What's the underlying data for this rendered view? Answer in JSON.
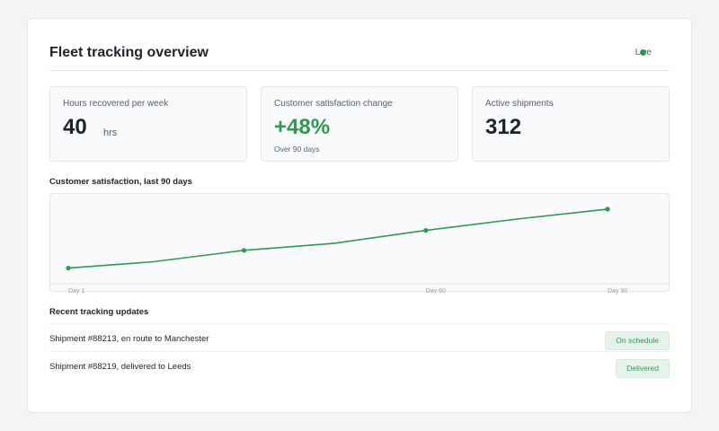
{
  "header": {
    "title": "Fleet tracking overview",
    "live_label": "Live"
  },
  "stats": [
    {
      "label": "Hours recovered per week",
      "value": "40",
      "unit": "hrs"
    },
    {
      "label": "Customer satisfaction change",
      "value": "+48%",
      "sub": "Over 90 days"
    },
    {
      "label": "Active shipments",
      "value": "312"
    }
  ],
  "colors": {
    "accent": "#2e9953",
    "badge_bg": "#e6f3ea",
    "text": "#1f2329",
    "muted": "#5b6168"
  },
  "chart_data": {
    "type": "line",
    "title": "Customer satisfaction, last 90 days",
    "x_tick_labels": [
      "Day 1",
      "Day 60",
      "Day 90"
    ],
    "x": [
      1,
      15,
      30,
      45,
      60,
      75,
      90
    ],
    "series": [
      {
        "values": [
          22,
          31,
          47,
          57,
          75,
          91,
          105
        ],
        "markers_at": [
          0,
          2,
          4,
          6
        ]
      }
    ],
    "xlim": [
      1,
      90
    ],
    "ylim": [
      0,
      120
    ],
    "grid": false
  },
  "updates": {
    "title": "Recent tracking updates",
    "rows": [
      {
        "text": "Shipment #88213, en route to Manchester",
        "status": "On schedule"
      },
      {
        "text": "Shipment #88219, delivered to Leeds",
        "status": "Delivered"
      }
    ]
  }
}
